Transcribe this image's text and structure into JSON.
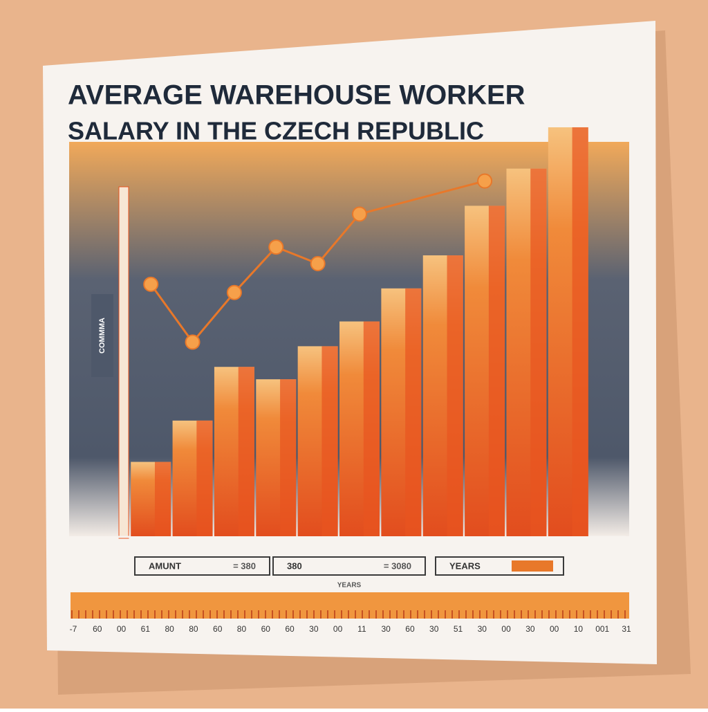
{
  "chart_data": {
    "type": "bar",
    "title": "AVERAGE WAREHOUSE WORKER",
    "subtitle": "SALARY IN THE CZECH REPUBLIC",
    "y_label": "COMMMA",
    "categories": [
      null,
      null,
      null,
      null,
      null,
      null,
      null,
      null,
      null,
      null,
      null
    ],
    "values": [
      18,
      28,
      41,
      38,
      46,
      52,
      60,
      68,
      80,
      89,
      99
    ],
    "color": "#e8541f",
    "ylim": [
      0,
      100
    ],
    "line": {
      "type": "line",
      "color": "#e8782a",
      "x": [
        0,
        1,
        2,
        3,
        4,
        5,
        8
      ],
      "values": [
        61,
        47,
        59,
        70,
        66,
        78,
        86
      ]
    },
    "legend_boxes": [
      {
        "label": "AMUNT",
        "text": "= 380"
      },
      {
        "label": "380",
        "text": "= 3080"
      },
      {
        "label": "YEARS"
      }
    ],
    "strip_title": "YEARS",
    "strip_labels": [
      "-7",
      "60",
      "00",
      "61",
      "80",
      "80",
      "60",
      "80",
      "60",
      "60",
      "30",
      "00",
      "11",
      "30",
      "60",
      "30",
      "51",
      "30",
      "00",
      "30",
      "00",
      "10",
      "001",
      "31"
    ]
  }
}
